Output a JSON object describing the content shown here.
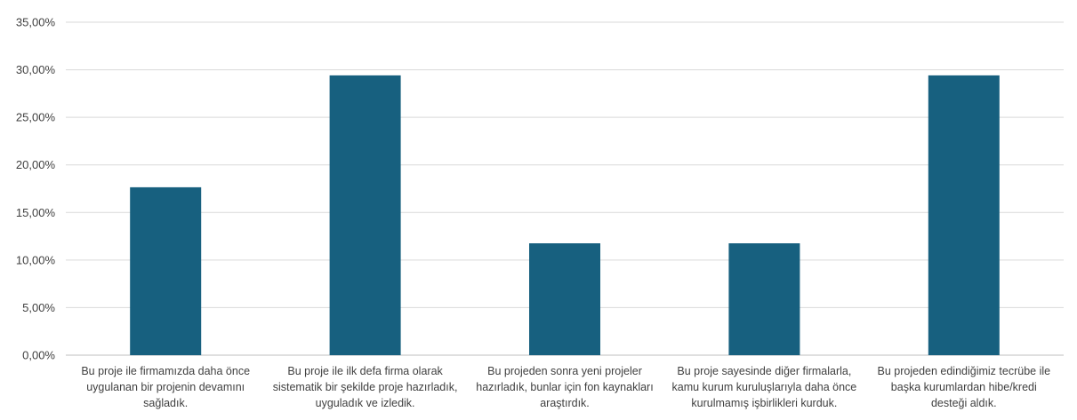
{
  "chart_data": {
    "type": "bar",
    "title": "",
    "xlabel": "",
    "ylabel": "",
    "ylim": [
      0,
      35
    ],
    "grid": true,
    "legend": "none",
    "bar_color": "#17607f",
    "yticks": [
      "0,00%",
      "5,00%",
      "10,00%",
      "15,00%",
      "20,00%",
      "25,00%",
      "30,00%",
      "35,00%"
    ],
    "categories": [
      [
        "Bu proje ile firmamızda daha önce",
        "uygulanan bir projenin devamını",
        "sağladık."
      ],
      [
        "Bu proje ile ilk defa firma olarak",
        "sistematik bir şekilde proje hazırladık,",
        "uyguladık ve izledik."
      ],
      [
        "Bu projeden sonra yeni projeler",
        "hazırladık, bunlar için fon kaynakları",
        "araştırdık."
      ],
      [
        "Bu proje sayesinde diğer firmalarla,",
        "kamu kurum kuruluşlarıyla daha önce",
        "kurulmamış işbirlikleri kurduk."
      ],
      [
        "Bu projeden edindiğimiz tecrübe ile",
        "başka kurumlardan hibe/kredi",
        "desteği aldık."
      ]
    ],
    "values": [
      17.65,
      29.41,
      11.76,
      11.76,
      29.41
    ]
  }
}
